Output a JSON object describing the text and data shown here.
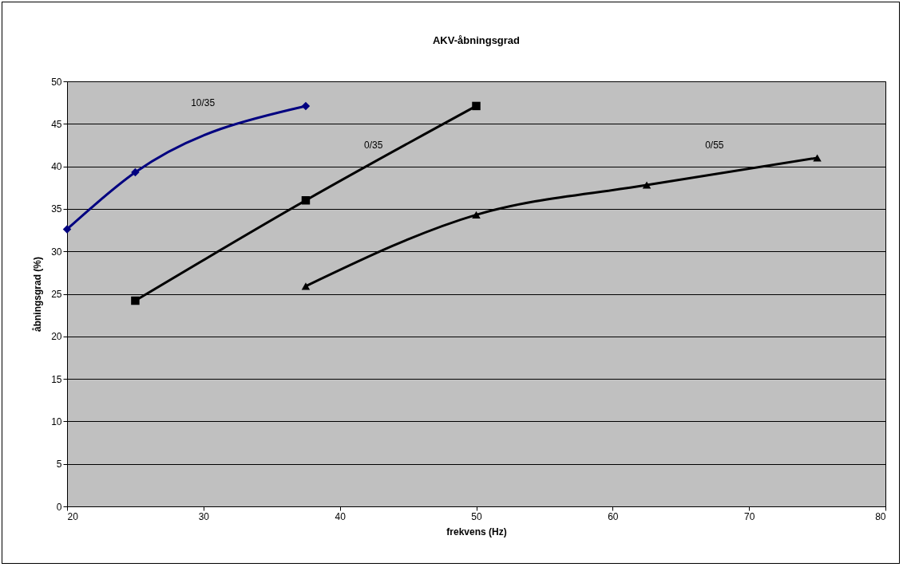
{
  "chart_data": {
    "type": "line",
    "title": "AKV-åbningsgrad",
    "xlabel": "frekvens (Hz)",
    "ylabel": "åbningsgrad (%)",
    "xlim": [
      20,
      80
    ],
    "xticks": [
      20,
      30,
      40,
      50,
      60,
      70,
      80
    ],
    "ylim": [
      0,
      50
    ],
    "yticks": [
      0,
      5,
      10,
      15,
      20,
      25,
      30,
      35,
      40,
      45,
      50
    ],
    "grid": "y",
    "series": [
      {
        "name": "10/35",
        "color": "#000080",
        "marker": "diamond",
        "x": [
          20,
          25,
          37.5
        ],
        "values": [
          32.6,
          39.3,
          47.1
        ]
      },
      {
        "name": "0/35",
        "color": "#000000",
        "marker": "square",
        "x": [
          25,
          37.5,
          50
        ],
        "values": [
          24.2,
          36.0,
          47.1
        ]
      },
      {
        "name": "0/55",
        "color": "#000000",
        "marker": "triangle",
        "x": [
          37.5,
          50,
          62.5,
          75
        ],
        "values": [
          25.9,
          34.3,
          37.8,
          41.0
        ]
      }
    ]
  }
}
